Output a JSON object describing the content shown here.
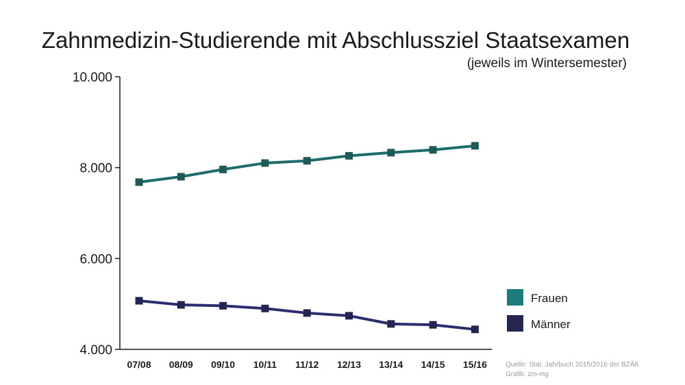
{
  "chart_data": {
    "type": "line",
    "title": "Zahnmedizin-Studierende mit Abschlussziel Staatsexamen",
    "subtitle": "(jeweils im Wintersemester)",
    "categories": [
      "07/08",
      "08/09",
      "09/10",
      "10/11",
      "11/12",
      "12/13",
      "13/14",
      "14/15",
      "15/16"
    ],
    "ylim": [
      4000,
      10000
    ],
    "yticks": [
      4000,
      6000,
      8000,
      10000
    ],
    "ytick_labels": [
      "4.000",
      "6.000",
      "8.000",
      "10.000"
    ],
    "series": [
      {
        "name": "Frauen",
        "color": "#1d6b6b",
        "marker_color": "#1d5a58",
        "values": [
          7680,
          7800,
          7960,
          8100,
          8150,
          8260,
          8330,
          8390,
          8480
        ]
      },
      {
        "name": "Männer",
        "color": "#2c2c6e",
        "marker_color": "#242452",
        "values": [
          5070,
          4980,
          4960,
          4900,
          4800,
          4740,
          4560,
          4540,
          4440
        ]
      }
    ],
    "legend_position": "right",
    "source_lines": [
      "Quelle: Stat. Jahrbuch 2015/2016 der BZÄK",
      "Grafik: zm-mg"
    ]
  },
  "legend": {
    "colors": [
      "#1e7b7d",
      "#24264e"
    ]
  }
}
